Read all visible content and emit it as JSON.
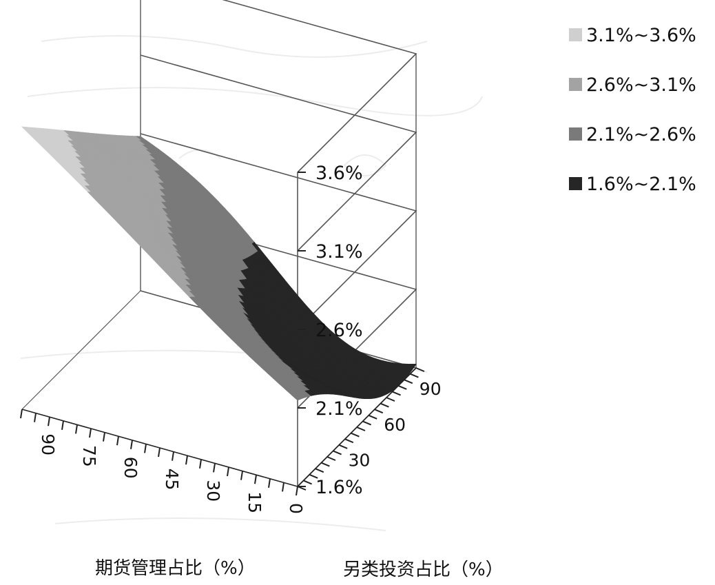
{
  "chart_data": {
    "type": "surface3d",
    "x_axis": {
      "label": "期货管理占比（%）",
      "ticks": [
        "0",
        "15",
        "30",
        "45",
        "60",
        "75",
        "90"
      ],
      "range": [
        0,
        100
      ]
    },
    "y_axis": {
      "label": "另类投资占比（%）",
      "ticks": [
        "30",
        "60",
        "90"
      ],
      "range": [
        0,
        100
      ]
    },
    "z_axis": {
      "ticks": [
        "1.6%",
        "2.1%",
        "2.6%",
        "3.1%",
        "3.6%"
      ],
      "range": [
        1.6,
        3.6
      ]
    },
    "series": [
      {
        "name": "3.1%~3.6%",
        "range": [
          3.1,
          3.6
        ],
        "color": "#cfcfcf"
      },
      {
        "name": "2.6%~3.1%",
        "range": [
          2.6,
          3.1
        ],
        "color": "#a3a3a3"
      },
      {
        "name": "2.1%~2.6%",
        "range": [
          2.1,
          2.6
        ],
        "color": "#7a7a7a"
      },
      {
        "name": "1.6%~2.1%",
        "range": [
          1.6,
          2.1
        ],
        "color": "#262626"
      }
    ],
    "corner_values": {
      "futures100_alt0": 3.4,
      "futures0_alt100": 2.05,
      "futures0_alt0": 2.2,
      "futures100_alt100": 2.6
    },
    "minimum": {
      "futures": 22,
      "alt": 82,
      "value": 1.6
    },
    "legend_position": "top-right",
    "grid": true
  }
}
